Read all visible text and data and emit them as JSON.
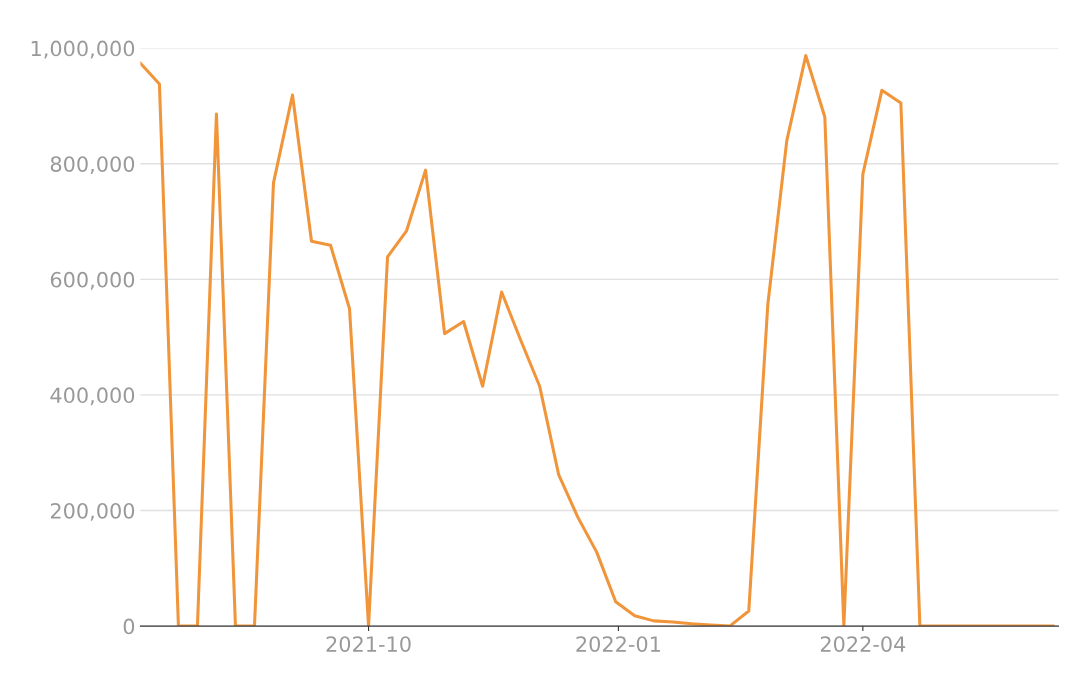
{
  "chart_data": {
    "type": "line",
    "x": [
      "2021-07-09",
      "2021-07-16",
      "2021-07-23",
      "2021-07-30",
      "2021-08-06",
      "2021-08-13",
      "2021-08-20",
      "2021-08-27",
      "2021-09-03",
      "2021-09-10",
      "2021-09-17",
      "2021-09-24",
      "2021-10-01",
      "2021-10-08",
      "2021-10-15",
      "2021-10-22",
      "2021-10-29",
      "2021-11-05",
      "2021-11-12",
      "2021-11-19",
      "2021-11-26",
      "2021-12-03",
      "2021-12-10",
      "2021-12-17",
      "2021-12-24",
      "2021-12-31",
      "2022-01-07",
      "2022-01-14",
      "2022-01-21",
      "2022-01-28",
      "2022-02-04",
      "2022-02-11",
      "2022-02-18",
      "2022-02-25",
      "2022-03-04",
      "2022-03-11",
      "2022-03-18",
      "2022-03-25",
      "2022-04-01",
      "2022-04-08",
      "2022-04-15",
      "2022-04-22",
      "2022-04-29",
      "2022-05-06",
      "2022-05-13",
      "2022-05-20",
      "2022-05-27",
      "2022-06-03",
      "2022-06-10"
    ],
    "series": [
      {
        "color": "#f0953a",
        "values": [
          974000,
          938000,
          0,
          0,
          886000,
          0,
          0,
          767000,
          919000,
          666000,
          659000,
          549000,
          0,
          639000,
          684000,
          789000,
          506000,
          527000,
          415000,
          578000,
          495000,
          415000,
          262000,
          189000,
          128000,
          42000,
          18000,
          9000,
          7000,
          4000,
          2000,
          0,
          26000,
          556000,
          840000,
          987000,
          881000,
          0,
          782000,
          927000,
          905000,
          0,
          0,
          0,
          0,
          0,
          0,
          0,
          0
        ]
      }
    ],
    "xlim": [
      "2021-07-09",
      "2022-06-12"
    ],
    "xticks": [
      {
        "value": "2021-10-01",
        "label": "2021-10"
      },
      {
        "value": "2022-01-01",
        "label": "2022-01"
      },
      {
        "value": "2022-04-01",
        "label": "2022-04"
      }
    ],
    "ylim": [
      0,
      1000000
    ],
    "yticks": [
      {
        "value": 0,
        "label": "0"
      },
      {
        "value": 200000,
        "label": "200,000"
      },
      {
        "value": 400000,
        "label": "400,000"
      },
      {
        "value": 600000,
        "label": "600,000"
      },
      {
        "value": 800000,
        "label": "800,000"
      },
      {
        "value": 1000000,
        "label": "1,000,000"
      }
    ],
    "grid": "y",
    "marker": "none",
    "line_style": "solid"
  }
}
